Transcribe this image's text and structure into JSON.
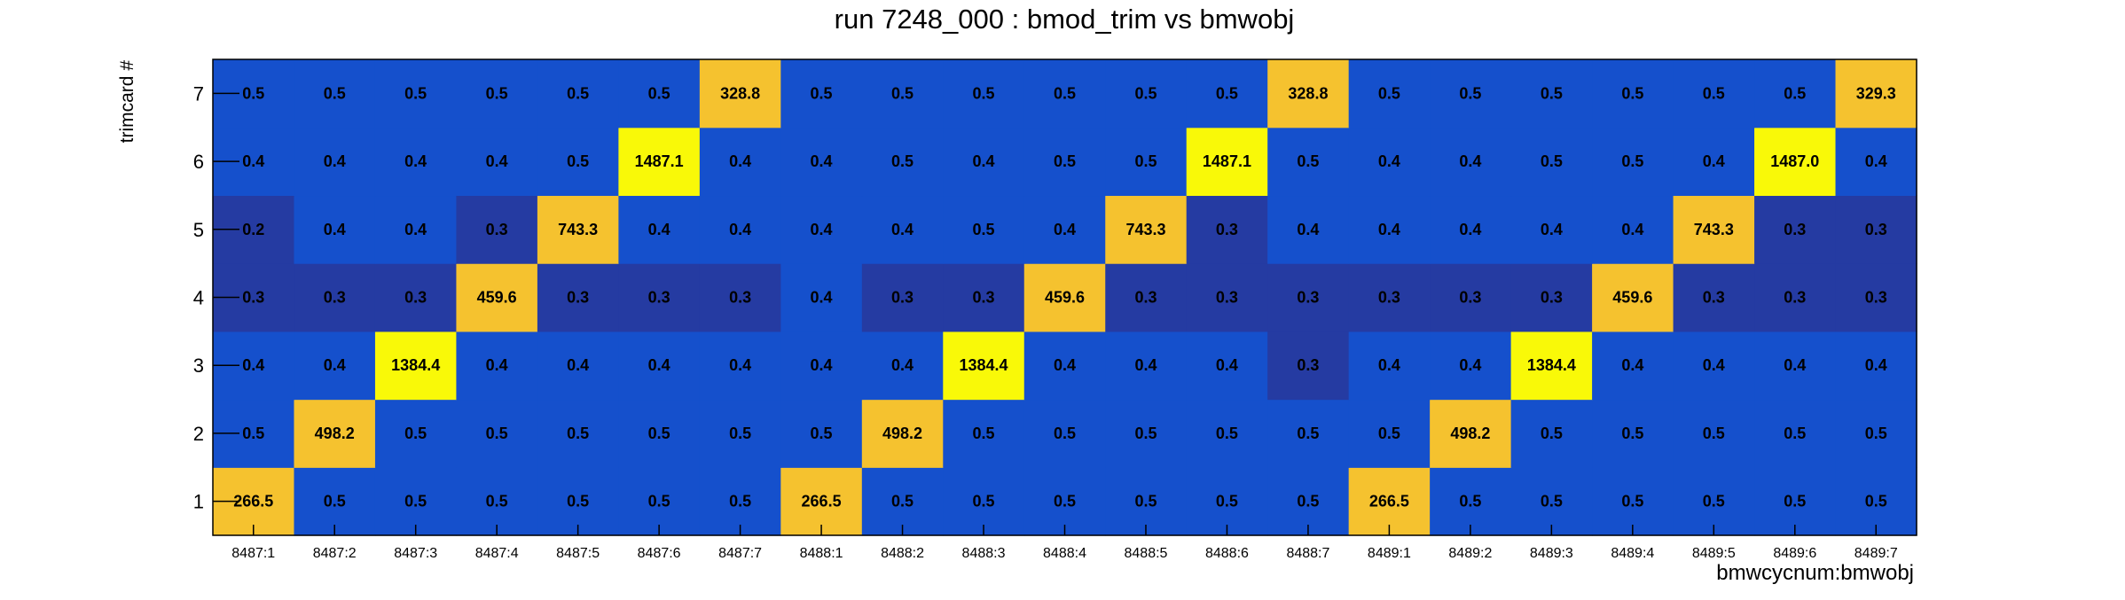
{
  "chart_data": {
    "type": "heatmap",
    "title": "run 7248_000 : bmod_trim vs bmwobj",
    "xlabel": "bmwcycnum:bmwobj",
    "ylabel": "trimcard #",
    "x_categories": [
      "8487:1",
      "8487:2",
      "8487:3",
      "8487:4",
      "8487:5",
      "8487:6",
      "8487:7",
      "8488:1",
      "8488:2",
      "8488:3",
      "8488:4",
      "8488:5",
      "8488:6",
      "8488:7",
      "8489:1",
      "8489:2",
      "8489:3",
      "8489:4",
      "8489:5",
      "8489:6",
      "8489:7"
    ],
    "y_categories": [
      "1",
      "2",
      "3",
      "4",
      "5",
      "6",
      "7"
    ],
    "values": [
      [
        "266.5",
        "0.5",
        "0.5",
        "0.5",
        "0.5",
        "0.5",
        "0.5",
        "266.5",
        "0.5",
        "0.5",
        "0.5",
        "0.5",
        "0.5",
        "0.5",
        "266.5",
        "0.5",
        "0.5",
        "0.5",
        "0.5",
        "0.5",
        "0.5"
      ],
      [
        "0.5",
        "498.2",
        "0.5",
        "0.5",
        "0.5",
        "0.5",
        "0.5",
        "0.5",
        "498.2",
        "0.5",
        "0.5",
        "0.5",
        "0.5",
        "0.5",
        "0.5",
        "498.2",
        "0.5",
        "0.5",
        "0.5",
        "0.5",
        "0.5"
      ],
      [
        "0.4",
        "0.4",
        "1384.4",
        "0.4",
        "0.4",
        "0.4",
        "0.4",
        "0.4",
        "0.4",
        "1384.4",
        "0.4",
        "0.4",
        "0.4",
        "0.3",
        "0.4",
        "0.4",
        "1384.4",
        "0.4",
        "0.4",
        "0.4",
        "0.4"
      ],
      [
        "0.3",
        "0.3",
        "0.3",
        "459.6",
        "0.3",
        "0.3",
        "0.3",
        "0.4",
        "0.3",
        "0.3",
        "459.6",
        "0.3",
        "0.3",
        "0.3",
        "0.3",
        "0.3",
        "0.3",
        "459.6",
        "0.3",
        "0.3",
        "0.3"
      ],
      [
        "0.2",
        "0.4",
        "0.4",
        "0.3",
        "743.3",
        "0.4",
        "0.4",
        "0.4",
        "0.4",
        "0.5",
        "0.4",
        "743.3",
        "0.3",
        "0.4",
        "0.4",
        "0.4",
        "0.4",
        "0.4",
        "743.3",
        "0.3",
        "0.3"
      ],
      [
        "0.4",
        "0.4",
        "0.4",
        "0.4",
        "0.5",
        "1487.1",
        "0.4",
        "0.4",
        "0.5",
        "0.4",
        "0.5",
        "0.5",
        "1487.1",
        "0.5",
        "0.4",
        "0.4",
        "0.5",
        "0.5",
        "0.4",
        "1487.0",
        "0.4"
      ],
      [
        "0.5",
        "0.5",
        "0.5",
        "0.5",
        "0.5",
        "0.5",
        "328.8",
        "0.5",
        "0.5",
        "0.5",
        "0.5",
        "0.5",
        "0.5",
        "328.8",
        "0.5",
        "0.5",
        "0.5",
        "0.5",
        "0.5",
        "0.5",
        "329.3"
      ]
    ],
    "colors": {
      "very_low": "#253ba2",
      "low": "#1550cc",
      "high": "#f5c22f",
      "very_high": "#f9f908",
      "frame": "#000000",
      "text": "#000000"
    },
    "grid": false,
    "legend": "none"
  }
}
